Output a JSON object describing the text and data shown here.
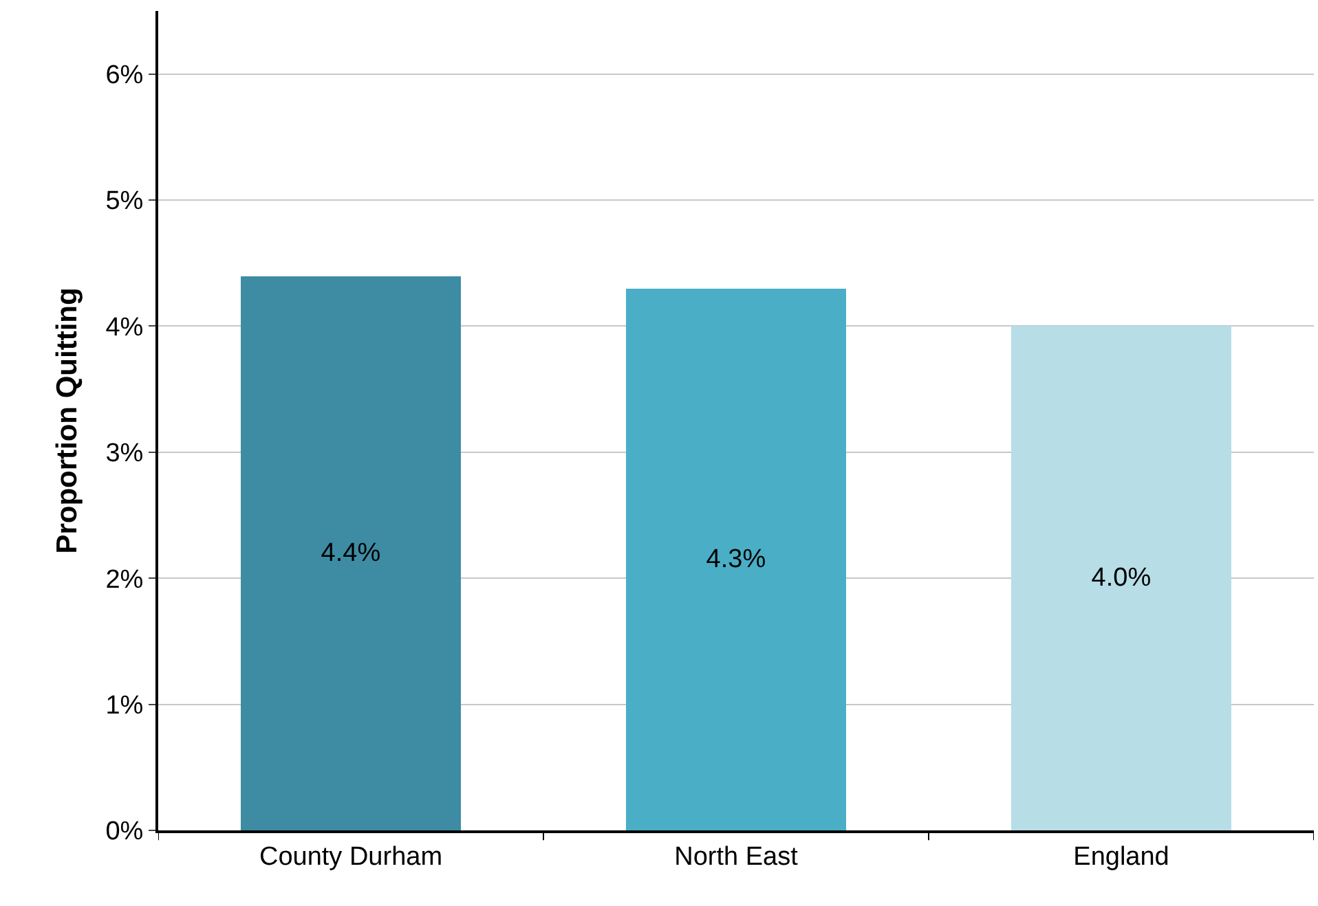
{
  "chart_data": {
    "type": "bar",
    "ylabel": "Proportion Quitting",
    "categories": [
      "County Durham",
      "North East",
      "England"
    ],
    "values": [
      4.4,
      4.3,
      4.0
    ],
    "colors": [
      "#3d8ca3",
      "#4aaec6",
      "#b7dde7"
    ],
    "ylim": [
      0,
      6.5
    ],
    "yticks": [
      {
        "value": 0,
        "label": "0%"
      },
      {
        "value": 1,
        "label": "1%"
      },
      {
        "value": 2,
        "label": "2%"
      },
      {
        "value": 3,
        "label": "3%"
      },
      {
        "value": 4,
        "label": "4%"
      },
      {
        "value": 5,
        "label": "5%"
      },
      {
        "value": 6,
        "label": "6%"
      }
    ],
    "value_labels": [
      "4.4%",
      "4.3%",
      "4.0%"
    ],
    "grid": "y",
    "legend": false
  }
}
